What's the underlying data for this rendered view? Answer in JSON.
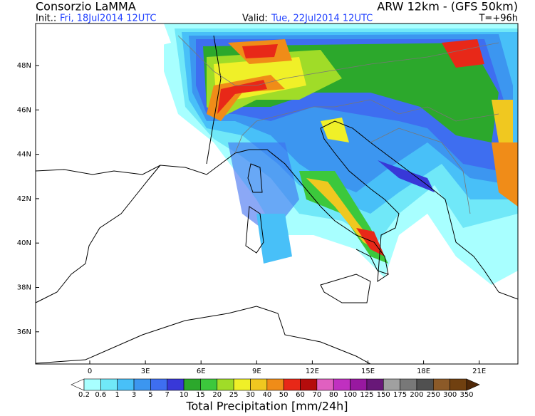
{
  "header": {
    "title": "Consorzio LaMMA",
    "model": "ARW 12km - (GFS 50km)",
    "init_label": "Init.:",
    "init_value": "Fri, 18Jul2014 12UTC",
    "valid_label": "Valid:",
    "valid_value": "Tue, 22Jul2014 12UTC",
    "lead": "T=+96h"
  },
  "map": {
    "lat_labels": [
      "48N",
      "46N",
      "44N",
      "42N",
      "40N",
      "38N",
      "36N"
    ],
    "lon_labels": [
      "0",
      "3E",
      "6E",
      "9E",
      "12E",
      "15E",
      "18E",
      "21E"
    ]
  },
  "colorbar": {
    "title": "Total Precipitation [mm/24h]",
    "labels": [
      "0.2",
      "0.6",
      "1",
      "3",
      "5",
      "7",
      "10",
      "15",
      "20",
      "25",
      "30",
      "40",
      "50",
      "60",
      "70",
      "80",
      "100",
      "125",
      "150",
      "175",
      "200",
      "250",
      "300",
      "350"
    ],
    "colors": [
      "#ffffff",
      "#a8ffff",
      "#70e8f8",
      "#48c0f8",
      "#3c96f0",
      "#3e6ef0",
      "#3838d8",
      "#2ca82c",
      "#3cc83c",
      "#a0dc28",
      "#f0f028",
      "#f0c820",
      "#f08c18",
      "#e82818",
      "#b40c0c",
      "#e060c0",
      "#c030c0",
      "#9818a0",
      "#681878",
      "#a0a0a0",
      "#787878",
      "#505050",
      "#8c5a28",
      "#704010",
      "#502808"
    ]
  }
}
